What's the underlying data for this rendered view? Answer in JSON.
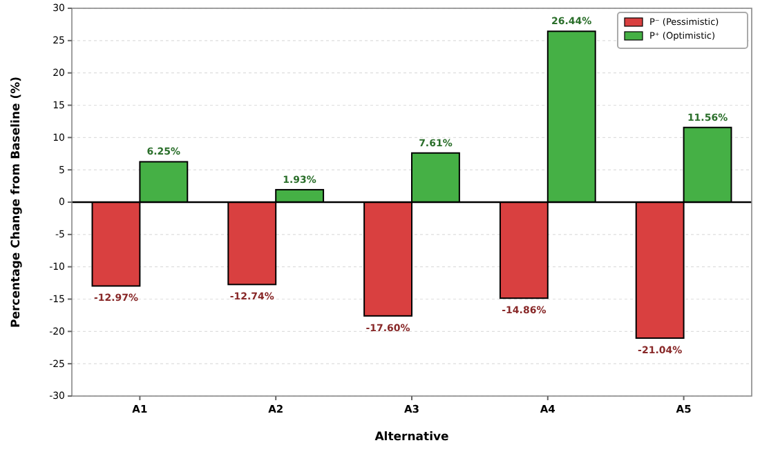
{
  "chart_data": {
    "type": "bar",
    "xlabel": "Alternative",
    "ylabel": "Percentage Change from Baseline (%)",
    "categories": [
      "A1",
      "A2",
      "A3",
      "A4",
      "A5"
    ],
    "series": [
      {
        "name": "P⁻ (Pessimistic)",
        "color": "#d94040",
        "values": [
          -12.97,
          -12.74,
          -17.6,
          -14.86,
          -21.04
        ],
        "value_labels": [
          "-12.97%",
          "-12.74%",
          "-17.60%",
          "-14.86%",
          "-21.04%"
        ]
      },
      {
        "name": "P⁺ (Optimistic)",
        "color": "#45b045",
        "values": [
          6.25,
          1.93,
          7.61,
          26.44,
          11.56
        ],
        "value_labels": [
          "6.25%",
          "1.93%",
          "7.61%",
          "26.44%",
          "11.56%"
        ]
      }
    ],
    "ylim": [
      -30,
      30
    ],
    "yticks": [
      -30,
      -25,
      -20,
      -15,
      -10,
      -5,
      0,
      5,
      10,
      15,
      20,
      25,
      30
    ],
    "grid": "y",
    "legend": "top right",
    "ref_lines": [
      {
        "axis": "y",
        "value": 0,
        "color": "#000000"
      }
    ]
  }
}
